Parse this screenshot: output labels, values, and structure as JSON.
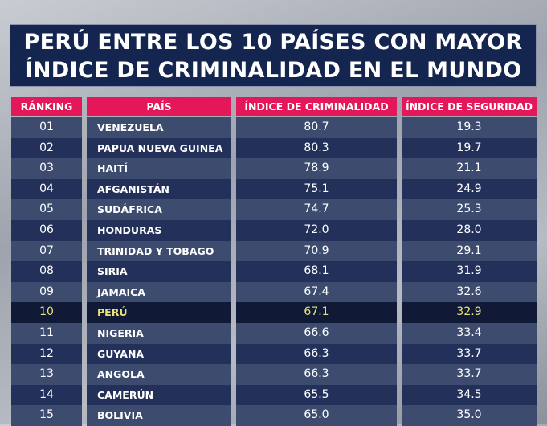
{
  "title_line1": "PERÚ ENTRE LOS 10 PAÍSES CON MAYOR",
  "title_line2": "ÍNDICE DE CRIMINALIDAD EN EL MUNDO",
  "colors": {
    "header": "#e3175a",
    "title_bg": "#14254f",
    "highlight_text": "#e9e37a"
  },
  "chart_data": {
    "type": "table",
    "columns": [
      "RÁNKING",
      "PAÍS",
      "ÍNDICE DE CRIMINALIDAD",
      "ÍNDICE DE SEGURIDAD"
    ],
    "highlight_row": "PERÚ",
    "rows": [
      [
        "01",
        "VENEZUELA",
        "80.7",
        "19.3"
      ],
      [
        "02",
        "PAPUA NUEVA GUINEA",
        "80.3",
        "19.7"
      ],
      [
        "03",
        "HAITÍ",
        "78.9",
        "21.1"
      ],
      [
        "04",
        "AFGANISTÁN",
        "75.1",
        "24.9"
      ],
      [
        "05",
        "SUDÁFRICA",
        "74.7",
        "25.3"
      ],
      [
        "06",
        "HONDURAS",
        "72.0",
        "28.0"
      ],
      [
        "07",
        "TRINIDAD Y TOBAGO",
        "70.9",
        "29.1"
      ],
      [
        "08",
        "SIRIA",
        "68.1",
        "31.9"
      ],
      [
        "09",
        "JAMAICA",
        "67.4",
        "32.6"
      ],
      [
        "10",
        "PERÚ",
        "67.1",
        "32.9"
      ],
      [
        "11",
        "NIGERIA",
        "66.6",
        "33.4"
      ],
      [
        "12",
        "GUYANA",
        "66.3",
        "33.7"
      ],
      [
        "13",
        "ANGOLA",
        "66.3",
        "33.7"
      ],
      [
        "14",
        "CAMERÚN",
        "65.5",
        "34.5"
      ],
      [
        "15",
        "BOLIVIA",
        "65.0",
        "35.0"
      ]
    ]
  }
}
